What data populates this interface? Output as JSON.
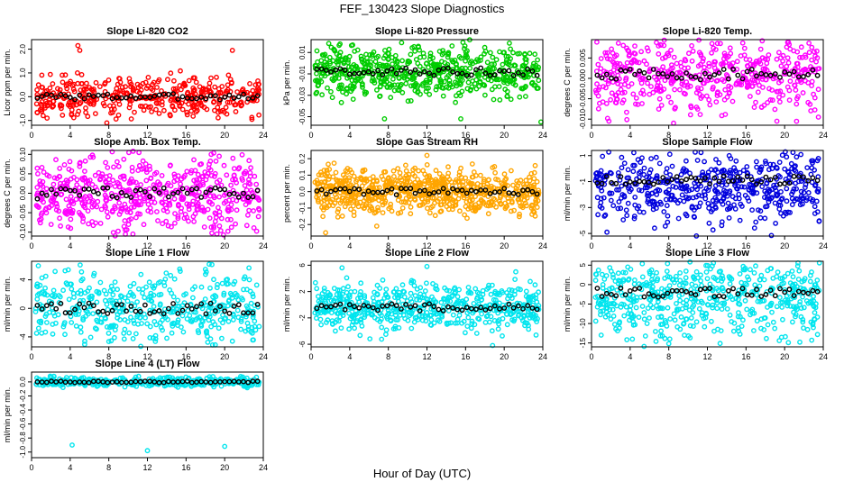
{
  "title": "FEF_130423  Slope Diagnostics",
  "xlabel_shared": "Hour of Day (UTC)",
  "chart_data": [
    {
      "type": "scatter",
      "title": "Slope Li-820 CO2",
      "ylabel": "Licor ppm per min.",
      "xlim": [
        0,
        24
      ],
      "xticks": [
        "0",
        "4",
        "8",
        "12",
        "16",
        "20",
        "24"
      ],
      "ylim": [
        -1.2,
        2.4
      ],
      "yticks": [
        {
          "v": -1.0,
          "label": "-1.0"
        },
        {
          "v": 0.0,
          "label": "0.0"
        },
        {
          "v": 1.0,
          "label": "1.0"
        },
        {
          "v": 2.0,
          "label": "2.0"
        }
      ],
      "color": "#ff0000",
      "color_mean": "#000000",
      "points": 420,
      "center": 0.0,
      "spread": 0.42,
      "outliers": [
        [
          4.8,
          2.15
        ],
        [
          5.0,
          1.95
        ],
        [
          20.8,
          1.95
        ],
        [
          7.8,
          -1.1
        ],
        [
          1.2,
          -0.8
        ]
      ]
    },
    {
      "type": "scatter",
      "title": "Slope Li-820 Pressure",
      "ylabel": "kPa per min.",
      "xlim": [
        0,
        24
      ],
      "xticks": [
        "0",
        "4",
        "8",
        "12",
        "16",
        "20",
        "24"
      ],
      "ylim": [
        -0.058,
        0.022
      ],
      "yticks": [
        {
          "v": -0.05,
          "label": "-0.05"
        },
        {
          "v": -0.03,
          "label": "-0.03"
        },
        {
          "v": -0.01,
          "label": "-0.01"
        },
        {
          "v": 0.01,
          "label": "0.01"
        }
      ],
      "color": "#00cc00",
      "color_mean": "#000000",
      "points": 620,
      "center": -0.008,
      "spread": 0.012,
      "outliers": [
        [
          3.0,
          0.018
        ],
        [
          7.6,
          -0.052
        ],
        [
          15.5,
          -0.052
        ],
        [
          23.8,
          -0.055
        ]
      ]
    },
    {
      "type": "scatter",
      "title": "Slope Li-820 Temp.",
      "ylabel": "degrees C per min.",
      "xlim": [
        0,
        24
      ],
      "xticks": [
        "0",
        "4",
        "8",
        "12",
        "16",
        "20",
        "24"
      ],
      "ylim": [
        -0.0115,
        0.0095
      ],
      "yticks": [
        {
          "v": -0.01,
          "label": "-0.010"
        },
        {
          "v": -0.005,
          "label": "-0.005"
        },
        {
          "v": 0.0,
          "label": "0.000"
        },
        {
          "v": 0.005,
          "label": "0.005"
        }
      ],
      "color": "#ff00ff",
      "color_mean": "#000000",
      "points": 520,
      "center": 0.001,
      "spread": 0.0045,
      "outliers": [
        [
          1.8,
          -0.0105
        ],
        [
          8.5,
          -0.011
        ],
        [
          19.2,
          -0.0105
        ],
        [
          23.5,
          -0.0095
        ]
      ]
    },
    {
      "type": "scatter",
      "title": "Slope Amb. Box Temp.",
      "ylabel": "degrees C per min.",
      "xlim": [
        0,
        24
      ],
      "xticks": [
        "0",
        "4",
        "8",
        "12",
        "16",
        "20",
        "24"
      ],
      "ylim": [
        -0.11,
        0.11
      ],
      "yticks": [
        {
          "v": -0.1,
          "label": "-0.10"
        },
        {
          "v": -0.05,
          "label": "-0.05"
        },
        {
          "v": 0.0,
          "label": "0.00"
        },
        {
          "v": 0.05,
          "label": "0.05"
        },
        {
          "v": 0.1,
          "label": "0.10"
        }
      ],
      "color": "#ff00ff",
      "color_mean": "#000000",
      "points": 560,
      "center": 0.0,
      "spread": 0.048,
      "outliers": [
        [
          10.5,
          -0.105
        ],
        [
          19.2,
          -0.105
        ],
        [
          6.3,
          0.098
        ],
        [
          18.6,
          0.1
        ]
      ]
    },
    {
      "type": "scatter",
      "title": "Slope Gas Stream RH",
      "ylabel": "percent per min.",
      "xlim": [
        0,
        24
      ],
      "xticks": [
        "0",
        "4",
        "8",
        "12",
        "16",
        "20",
        "24"
      ],
      "ylim": [
        -0.27,
        0.25
      ],
      "yticks": [
        {
          "v": -0.2,
          "label": "-0.2"
        },
        {
          "v": -0.1,
          "label": "-0.1"
        },
        {
          "v": 0.0,
          "label": "0.0"
        },
        {
          "v": 0.1,
          "label": "0.1"
        },
        {
          "v": 0.2,
          "label": "0.2"
        }
      ],
      "color": "#ffa500",
      "color_mean": "#000000",
      "points": 720,
      "center": 0.0,
      "spread": 0.065,
      "outliers": [
        [
          1.5,
          -0.25
        ],
        [
          6.8,
          -0.21
        ],
        [
          12.0,
          0.22
        ],
        [
          9.8,
          0.16
        ]
      ]
    },
    {
      "type": "scatter",
      "title": "Slope Sample Flow",
      "ylabel": "ml/min per min.",
      "xlim": [
        0,
        24
      ],
      "xticks": [
        "0",
        "4",
        "8",
        "12",
        "16",
        "20",
        "24"
      ],
      "ylim": [
        -5.2,
        1.4
      ],
      "yticks": [
        {
          "v": -5,
          "label": "-5"
        },
        {
          "v": -3,
          "label": "-3"
        },
        {
          "v": -1,
          "label": "-1"
        },
        {
          "v": 1,
          "label": "1"
        }
      ],
      "color": "#0000dd",
      "color_mean": "#000000",
      "points": 500,
      "center": -0.9,
      "spread": 1.1,
      "outliers": [
        [
          1.6,
          -4.9
        ],
        [
          17.5,
          -3.8
        ],
        [
          20.2,
          0.9
        ],
        [
          22.8,
          0.6
        ]
      ]
    },
    {
      "type": "scatter",
      "title": "Slope Line 1 Flow",
      "ylabel": "ml/min per min.",
      "xlim": [
        0,
        24
      ],
      "xticks": [
        "0",
        "4",
        "8",
        "12",
        "16",
        "20",
        "24"
      ],
      "ylim": [
        -5.4,
        6.6
      ],
      "yticks": [
        {
          "v": -4,
          "label": "-4"
        },
        {
          "v": 0,
          "label": "0"
        },
        {
          "v": 4,
          "label": "4"
        }
      ],
      "color": "#00e5ee",
      "color_mean": "#000000",
      "points": 460,
      "center": 0.0,
      "spread": 2.6,
      "outliers": [
        [
          18.4,
          6.2
        ],
        [
          20.8,
          -4.6
        ],
        [
          3.8,
          5.4
        ]
      ]
    },
    {
      "type": "scatter",
      "title": "Slope Line 2 Flow",
      "ylabel": "ml/min per min.",
      "xlim": [
        0,
        24
      ],
      "xticks": [
        "0",
        "4",
        "8",
        "12",
        "16",
        "20",
        "24"
      ],
      "ylim": [
        -6.4,
        6.6
      ],
      "yticks": [
        {
          "v": -6,
          "label": "-6"
        },
        {
          "v": -2,
          "label": "-2"
        },
        {
          "v": 2,
          "label": "2"
        },
        {
          "v": 6,
          "label": "6"
        }
      ],
      "color": "#00e5ee",
      "color_mean": "#000000",
      "points": 560,
      "center": -0.4,
      "spread": 1.8,
      "outliers": [
        [
          18.8,
          -6.2
        ],
        [
          12.0,
          5.8
        ],
        [
          21.2,
          5.0
        ],
        [
          3.2,
          5.6
        ]
      ]
    },
    {
      "type": "scatter",
      "title": "Slope Line 3 Flow",
      "ylabel": "ml/min per min.",
      "xlim": [
        0,
        24
      ],
      "xticks": [
        "0",
        "4",
        "8",
        "12",
        "16",
        "20",
        "24"
      ],
      "ylim": [
        -16,
        6
      ],
      "yticks": [
        {
          "v": -15,
          "label": "-15"
        },
        {
          "v": -10,
          "label": "-10"
        },
        {
          "v": -5,
          "label": "-5"
        },
        {
          "v": 0,
          "label": "0"
        },
        {
          "v": 5,
          "label": "5"
        }
      ],
      "color": "#00e5ee",
      "color_mean": "#000000",
      "points": 540,
      "center": -2.0,
      "spread": 4.0,
      "outliers": [
        [
          8.0,
          -15.2
        ],
        [
          17.0,
          4.8
        ],
        [
          12.5,
          4.8
        ],
        [
          1.0,
          -13.0
        ]
      ]
    },
    {
      "type": "scatter",
      "title": "Slope Line 4 (LT) Flow",
      "ylabel": "ml/min per min.",
      "xlim": [
        0,
        24
      ],
      "xticks": [
        "0",
        "4",
        "8",
        "12",
        "16",
        "20",
        "24"
      ],
      "ylim": [
        -1.08,
        0.14
      ],
      "yticks": [
        {
          "v": -1.0,
          "label": "-1.0"
        },
        {
          "v": -0.8,
          "label": "-0.8"
        },
        {
          "v": -0.6,
          "label": "-0.6"
        },
        {
          "v": -0.4,
          "label": "-0.4"
        },
        {
          "v": -0.2,
          "label": "-0.2"
        },
        {
          "v": 0.0,
          "label": "0.0"
        }
      ],
      "color": "#00e5ee",
      "color_mean": "#000000",
      "points": 360,
      "center": 0.0,
      "spread": 0.035,
      "outliers": [
        [
          4.2,
          -0.9
        ],
        [
          12.0,
          -0.98
        ],
        [
          20.0,
          -0.92
        ]
      ]
    }
  ]
}
